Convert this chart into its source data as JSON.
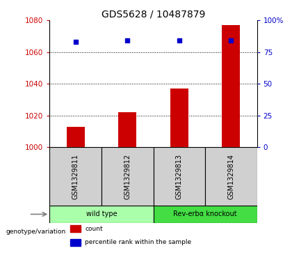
{
  "title": "GDS5628 / 10487879",
  "samples": [
    "GSM1329811",
    "GSM1329812",
    "GSM1329813",
    "GSM1329814"
  ],
  "counts": [
    1013,
    1022,
    1037,
    1077
  ],
  "percentile_ranks": [
    83,
    84,
    84,
    84
  ],
  "ylim_left": [
    1000,
    1080
  ],
  "ylim_right": [
    0,
    100
  ],
  "yticks_left": [
    1000,
    1020,
    1040,
    1060,
    1080
  ],
  "yticks_right": [
    0,
    25,
    50,
    75,
    100
  ],
  "ytick_labels_right": [
    "0",
    "25",
    "50",
    "75",
    "100%"
  ],
  "bar_color": "#cc0000",
  "dot_color": "#0000cc",
  "bar_width": 0.35,
  "groups": [
    {
      "label": "wild type",
      "indices": [
        0,
        1
      ],
      "color": "#aaffaa"
    },
    {
      "label": "Rev-erbα knockout",
      "indices": [
        2,
        3
      ],
      "color": "#44dd44"
    }
  ],
  "genotype_label": "genotype/variation",
  "legend_items": [
    {
      "color": "#cc0000",
      "label": "count"
    },
    {
      "color": "#0000cc",
      "label": "percentile rank within the sample"
    }
  ],
  "bg_color": "#ffffff",
  "plot_bg": "#ffffff",
  "sample_bg": "#d0d0d0",
  "title_fontsize": 10,
  "tick_fontsize": 7.5,
  "label_fontsize": 7.5,
  "sample_fontsize": 7,
  "group_fontsize": 7
}
